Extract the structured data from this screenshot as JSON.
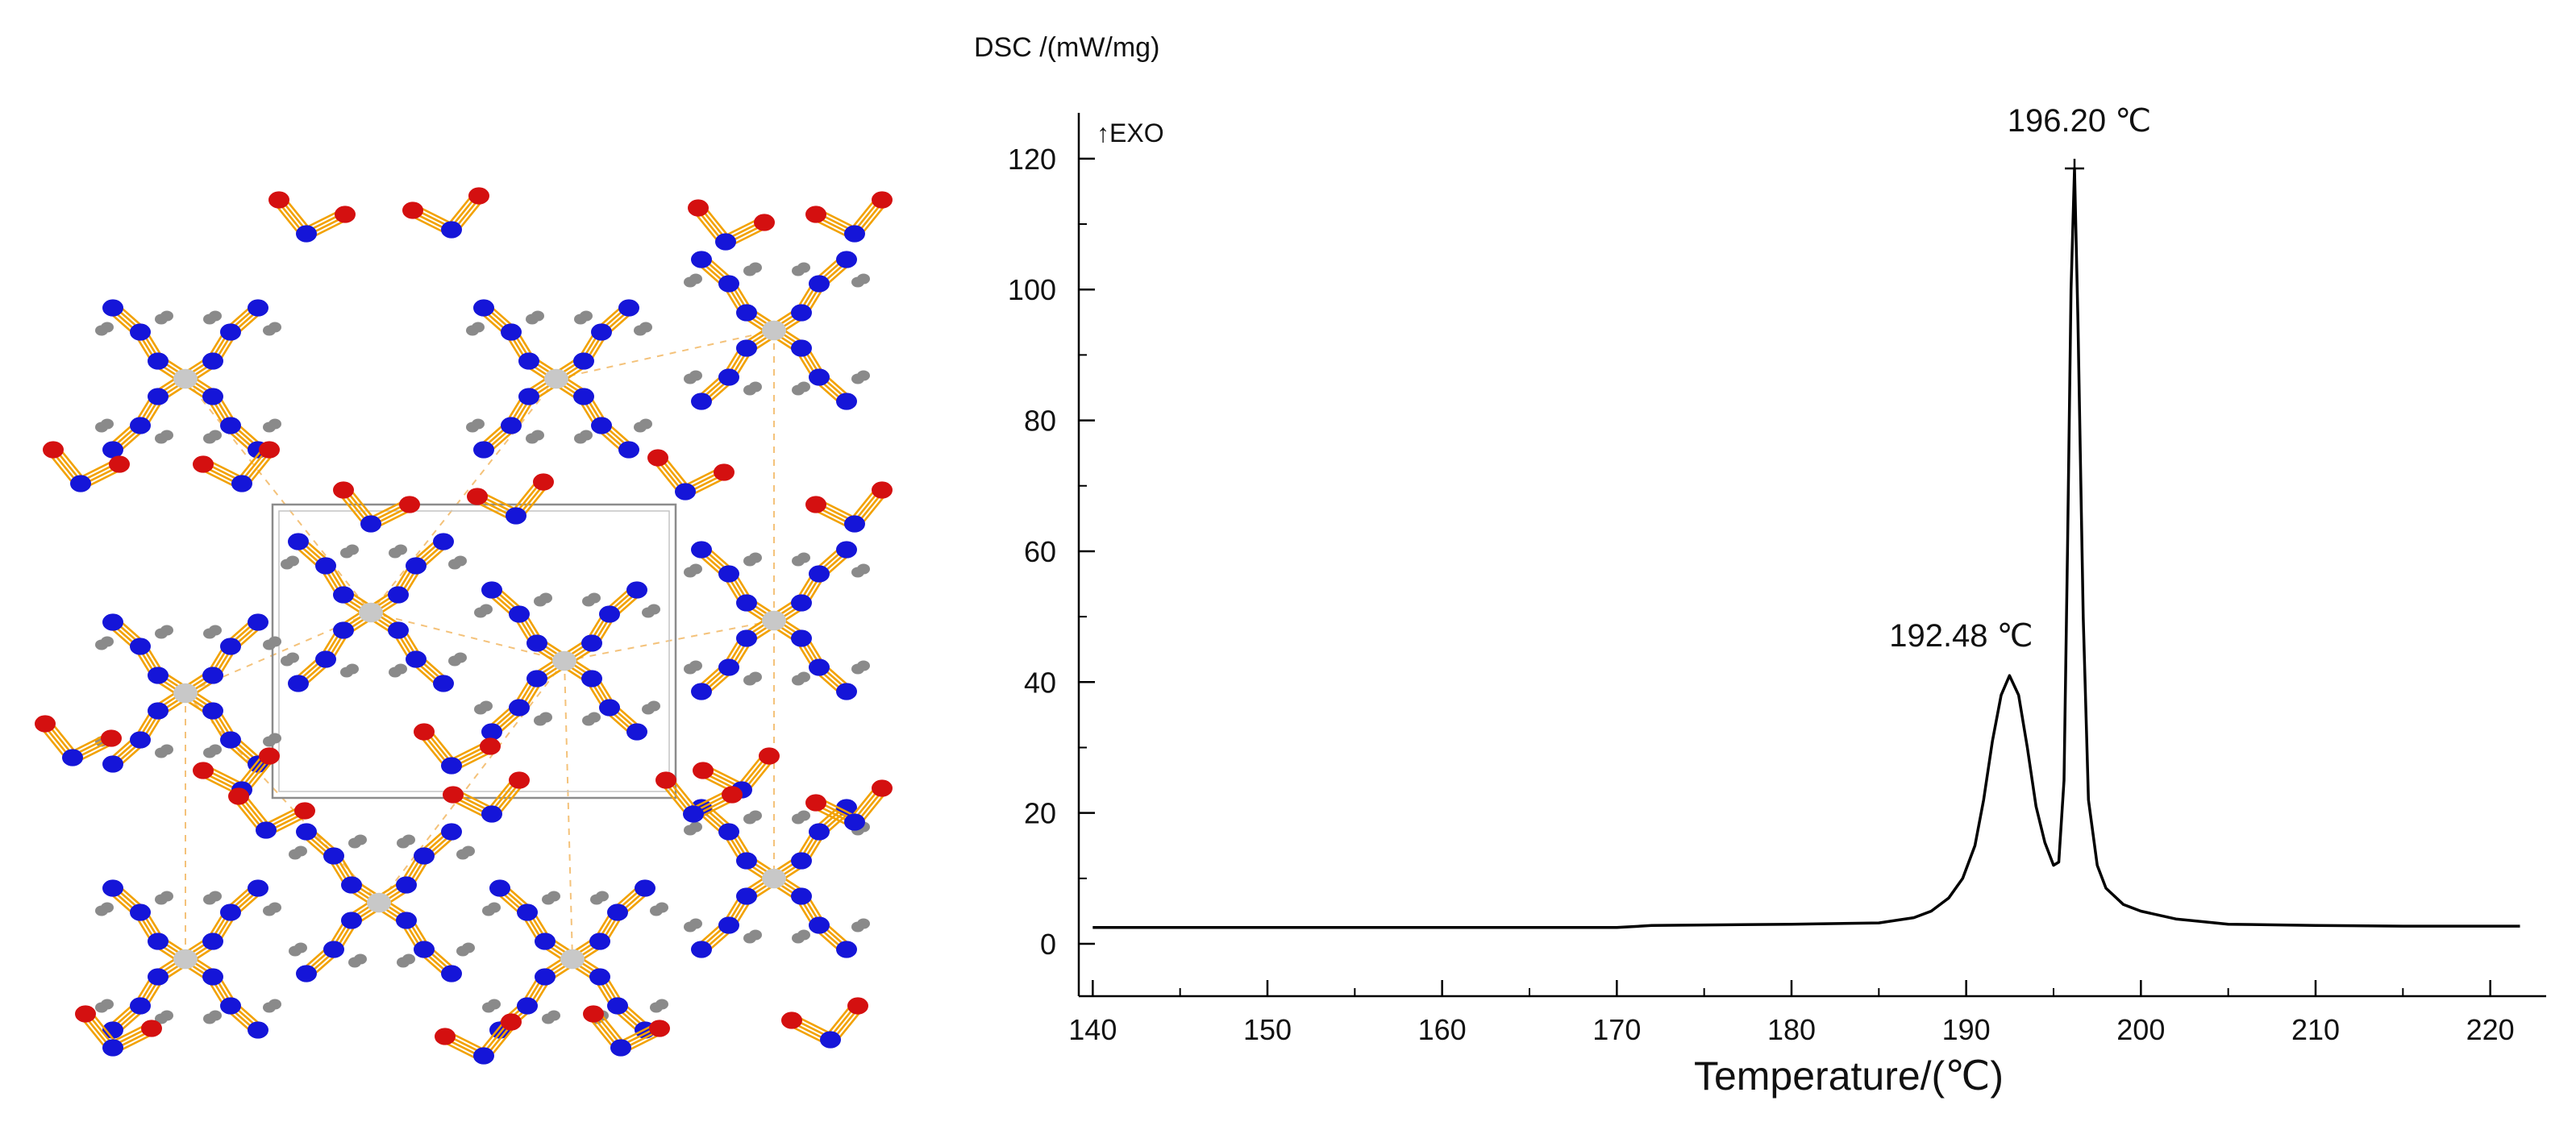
{
  "colors": {
    "bond": "#F2A100",
    "nitrogen": "#1515D8",
    "oxygen": "#D41010",
    "hydrogen": "#8A8A8A",
    "metal": "#C8C8C8",
    "hbond": "#F4C27A",
    "line": "#000000"
  },
  "chart_data": {
    "type": "line",
    "title": "",
    "ylabel": "DSC /(mW/mg)",
    "xlabel": "Temperature/(℃)",
    "exo_label": "↑EXO",
    "xlim": [
      139.2,
      223.2
    ],
    "ylim": [
      -8,
      127
    ],
    "x_ticks": [
      140,
      150,
      160,
      170,
      180,
      190,
      200,
      210,
      220
    ],
    "y_ticks": [
      0,
      20,
      40,
      60,
      80,
      100,
      120
    ],
    "grid": false,
    "series": [
      {
        "name": "DSC",
        "x": [
          140,
          150,
          160,
          170,
          172,
          180,
          185,
          187,
          188,
          189,
          189.8,
          190.5,
          191.0,
          191.5,
          192.0,
          192.48,
          193.0,
          193.5,
          194.0,
          194.5,
          195.0,
          195.3,
          195.6,
          195.8,
          196.0,
          196.2,
          196.4,
          196.7,
          197.0,
          197.5,
          198.0,
          199.0,
          200.0,
          202.0,
          205.0,
          210.0,
          215.0,
          221.7
        ],
        "y": [
          2.5,
          2.5,
          2.5,
          2.5,
          2.8,
          3.0,
          3.2,
          4.0,
          5.0,
          7.0,
          10.0,
          15.0,
          22.0,
          31.0,
          38.0,
          41.0,
          38.0,
          30.0,
          21.0,
          15.5,
          12.0,
          12.5,
          25.0,
          60.0,
          100.0,
          118.5,
          95.0,
          50.0,
          22.0,
          12.0,
          8.5,
          6.0,
          5.0,
          3.8,
          3.0,
          2.8,
          2.7,
          2.7
        ]
      }
    ],
    "annotations": [
      {
        "label": "192.48 ℃",
        "x": 192.48,
        "y": 41
      },
      {
        "label": "196.20 ℃",
        "x": 196.2,
        "y": 118.5
      }
    ]
  }
}
